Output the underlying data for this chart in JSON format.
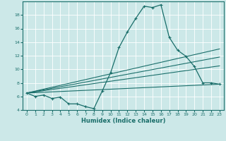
{
  "xlabel": "Humidex (Indice chaleur)",
  "xlim": [
    -0.5,
    23.5
  ],
  "ylim": [
    4,
    20
  ],
  "yticks": [
    4,
    6,
    8,
    10,
    12,
    14,
    16,
    18
  ],
  "xticks": [
    0,
    1,
    2,
    3,
    4,
    5,
    6,
    7,
    8,
    9,
    10,
    11,
    12,
    13,
    14,
    15,
    16,
    17,
    18,
    19,
    20,
    21,
    22,
    23
  ],
  "bg_color": "#cce8e8",
  "line_color": "#1a6e6a",
  "grid_color": "#ffffff",
  "series_main": {
    "x": [
      0,
      1,
      2,
      3,
      4,
      5,
      6,
      7,
      8,
      9,
      10,
      11,
      12,
      13,
      14,
      15,
      16,
      17,
      18,
      19,
      20,
      21,
      22,
      23
    ],
    "y": [
      6.5,
      6.0,
      6.2,
      5.7,
      5.9,
      4.9,
      4.9,
      4.5,
      4.2,
      6.8,
      9.5,
      13.2,
      15.5,
      17.5,
      19.3,
      19.1,
      19.5,
      14.7,
      12.8,
      11.9,
      10.4,
      8.0,
      8.0,
      7.8
    ]
  },
  "series_line1": {
    "x": [
      0,
      23
    ],
    "y": [
      6.5,
      13.0
    ]
  },
  "series_line2": {
    "x": [
      0,
      23
    ],
    "y": [
      6.5,
      11.8
    ]
  },
  "series_line3": {
    "x": [
      0,
      23
    ],
    "y": [
      6.5,
      10.5
    ]
  },
  "series_line4": {
    "x": [
      0,
      23
    ],
    "y": [
      6.5,
      7.8
    ]
  }
}
